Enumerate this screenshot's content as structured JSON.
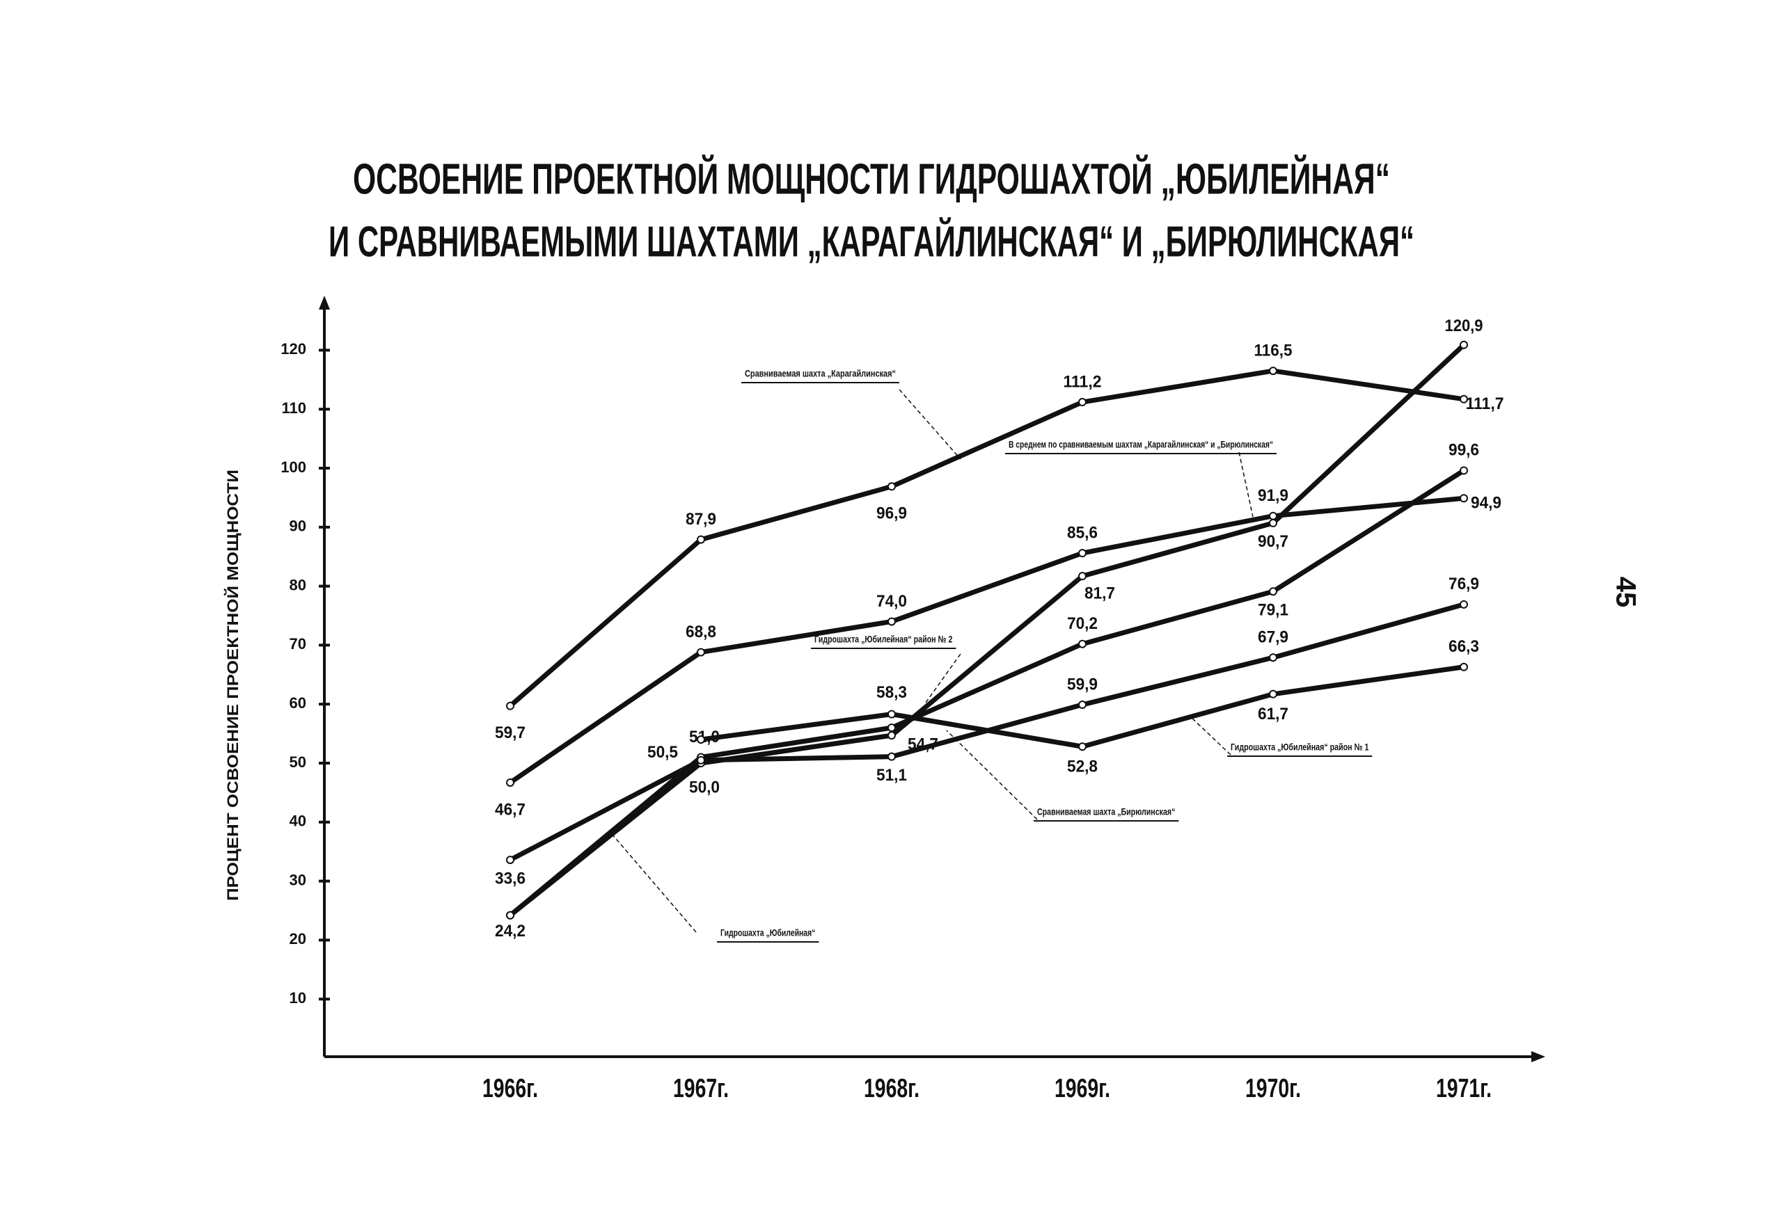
{
  "chart_data": {
    "type": "line",
    "title": [
      "ОСВОЕНИЕ ПРОЕКТНОЙ МОЩНОСТИ ГИДРОШАХТОЙ „ЮБИЛЕЙНАЯ“",
      "И СРАВНИВАЕМЫМИ ШАХТАМИ „КАРАГАЙЛИНСКАЯ“ И „БИРЮЛИНСКАЯ“"
    ],
    "y_label": "ПРОЦЕНТ ОСВОЕНИЕ ПРОЕКТНОЙ МОЩНОСТИ",
    "page_number": "45",
    "categories": [
      "1966г.",
      "1967г.",
      "1968г.",
      "1969г.",
      "1970г.",
      "1971г."
    ],
    "ylim": [
      0,
      128
    ],
    "yticks": [
      10,
      20,
      30,
      40,
      50,
      60,
      70,
      80,
      90,
      100,
      110,
      120
    ],
    "series": [
      {
        "name": "Сравниваемая шахта „Карагайлинская“",
        "color": "#111111",
        "values": [
          59.7,
          87.9,
          96.9,
          111.2,
          116.5,
          111.7
        ],
        "value_labels": [
          "59,7",
          "87,9",
          "96,9",
          "111,2",
          "116,5",
          "111,7"
        ]
      },
      {
        "name": "В среднем по сравниваемым шахтам „Карагайлинская“ и „Бирюлинская“",
        "color": "#111111",
        "values": [
          46.7,
          68.8,
          74.0,
          85.6,
          91.9,
          94.9
        ],
        "value_labels": [
          "46,7",
          "68,8",
          "74,0",
          "85,6",
          "91,9",
          "94,9"
        ]
      },
      {
        "name": "Гидрошахта „Юбилейная“",
        "color": "#111111",
        "values": [
          24.2,
          50.0,
          54.7,
          81.7,
          90.7,
          120.9
        ],
        "value_labels": [
          "24,2",
          "50,0",
          "54,7",
          "81,7",
          "90,7",
          "120,9"
        ]
      },
      {
        "name": "Гидрошахта „Юбилейная“ район № 2",
        "color": "#111111",
        "values": [
          24.2,
          51.0,
          56.0,
          70.2,
          79.1,
          99.6
        ],
        "value_labels": [
          null,
          "51,0",
          null,
          "70,2",
          "79,1",
          "99,6"
        ]
      },
      {
        "name": "Гидрошахта „Юбилейная“ район № 1",
        "color": "#111111",
        "values": [
          33.6,
          50.5,
          51.1,
          59.9,
          67.9,
          76.9
        ],
        "value_labels": [
          "33,6",
          "50,5",
          "51,1",
          "59,9",
          "67,9",
          "76,9"
        ]
      },
      {
        "name": "Сравниваемая шахта „Бирюлинская“",
        "color": "#111111",
        "values": [
          null,
          54.0,
          58.3,
          52.8,
          61.7,
          66.3
        ],
        "value_labels": [
          null,
          null,
          "58,3",
          "52,8",
          "61,7",
          "66,3"
        ]
      }
    ]
  }
}
